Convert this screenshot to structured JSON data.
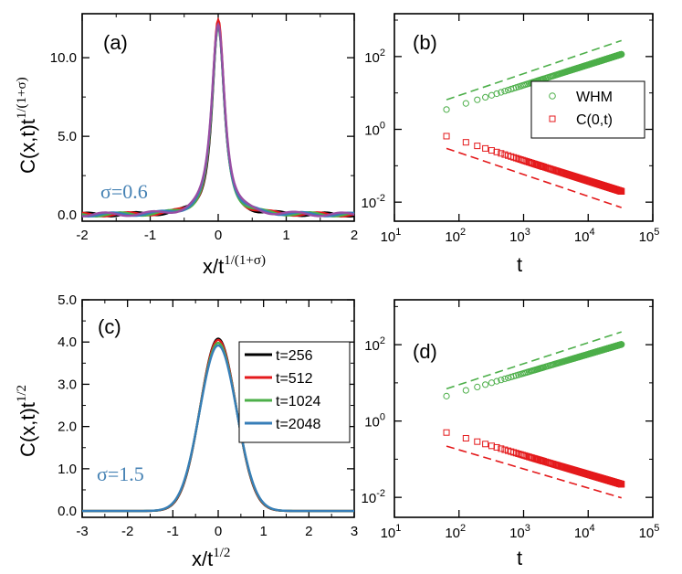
{
  "chart_data": [
    {
      "id": "a",
      "type": "line",
      "panel_label": "(a)",
      "xlabel": "x/t",
      "xlabel_sup": "1/(1+σ)",
      "ylabel": "C(x,t)t",
      "ylabel_sup": "1/(1+σ)",
      "xlim": [
        -2,
        2
      ],
      "ylim": [
        -0.4,
        12.8
      ],
      "xticks": [
        -2,
        -1,
        0,
        1,
        2
      ],
      "xtick_labels": [
        "-2",
        "-1",
        "0",
        "1",
        "2"
      ],
      "yticks": [
        0,
        5,
        10
      ],
      "ytick_labels": [
        "0.0",
        "5.0",
        "10.0"
      ],
      "annotation": "σ=0.6",
      "profile": {
        "form": "peaked",
        "peak": 12.2,
        "width": 0.11
      },
      "series": [
        {
          "color": "#000000",
          "peak": 12.1
        },
        {
          "color": "#e41a1c",
          "peak": 12.3
        },
        {
          "color": "#4daf4a",
          "peak": 11.8
        },
        {
          "color": "#377eb8",
          "peak": 12.0
        },
        {
          "color": "#984ea3",
          "peak": 12.2
        }
      ]
    },
    {
      "id": "b",
      "type": "scatter",
      "panel_label": "(b)",
      "xlabel": "t",
      "ylabel": "",
      "xscale": "log",
      "yscale": "log",
      "xlim": [
        10,
        100000
      ],
      "ylim": [
        0.003,
        1500
      ],
      "xtick_base": [
        "10",
        "10",
        "10",
        "10",
        "10"
      ],
      "xtick_exp": [
        "1",
        "2",
        "3",
        "4",
        "5"
      ],
      "ytick_base": [
        "10",
        "10",
        "10"
      ],
      "ytick_exp": [
        "-2",
        "0",
        "2"
      ],
      "legend_position": "right",
      "series": [
        {
          "name": "WHM",
          "marker": "circle",
          "color": "#4daf4a",
          "t_start": 64,
          "t_end": 32768,
          "y_start": 3.5,
          "slope": 0.56,
          "guide": {
            "y_start": 6.5,
            "slope": 0.6
          }
        },
        {
          "name": "C(0,t)",
          "marker": "square",
          "color": "#e41a1c",
          "t_start": 64,
          "t_end": 32768,
          "y_start": 0.65,
          "slope": -0.56,
          "guide": {
            "y_start": 0.3,
            "slope": -0.6
          }
        }
      ]
    },
    {
      "id": "c",
      "type": "line",
      "panel_label": "(c)",
      "xlabel": "x/t",
      "xlabel_sup": "1/2",
      "ylabel": "C(x,t)t",
      "ylabel_sup": "1/2",
      "xlim": [
        -3,
        3
      ],
      "ylim": [
        -0.15,
        5
      ],
      "xticks": [
        -3,
        -2,
        -1,
        0,
        1,
        2,
        3
      ],
      "xtick_labels": [
        "-3",
        "-2",
        "-1",
        "0",
        "1",
        "2",
        "3"
      ],
      "yticks": [
        0,
        1,
        2,
        3,
        4,
        5
      ],
      "ytick_labels": [
        "0.0",
        "1.0",
        "2.0",
        "3.0",
        "4.0",
        "5.0"
      ],
      "annotation": "σ=1.5",
      "legend_position": "top-right",
      "profile": {
        "form": "gaussian",
        "peak": 4.0,
        "sigma": 0.4
      },
      "series": [
        {
          "name": "t=256",
          "color": "#000000",
          "peak": 4.08,
          "sigma": 0.395
        },
        {
          "name": "t=512",
          "color": "#e41a1c",
          "peak": 4.05,
          "sigma": 0.398
        },
        {
          "name": "t=1024",
          "color": "#4daf4a",
          "peak": 3.98,
          "sigma": 0.403
        },
        {
          "name": "t=2048",
          "color": "#377eb8",
          "peak": 3.92,
          "sigma": 0.407
        }
      ]
    },
    {
      "id": "d",
      "type": "scatter",
      "panel_label": "(d)",
      "xlabel": "t",
      "ylabel": "",
      "xscale": "log",
      "yscale": "log",
      "xlim": [
        10,
        100000
      ],
      "ylim": [
        0.003,
        1500
      ],
      "xtick_base": [
        "10",
        "10",
        "10",
        "10",
        "10"
      ],
      "xtick_exp": [
        "1",
        "2",
        "3",
        "4",
        "5"
      ],
      "ytick_base": [
        "10",
        "10",
        "10"
      ],
      "ytick_exp": [
        "-2",
        "0",
        "2"
      ],
      "series": [
        {
          "marker": "circle",
          "color": "#4daf4a",
          "t_start": 64,
          "t_end": 32768,
          "y_start": 4.5,
          "slope": 0.5,
          "guide": {
            "y_start": 7,
            "slope": 0.55
          }
        },
        {
          "marker": "square",
          "color": "#e41a1c",
          "t_start": 64,
          "t_end": 32768,
          "y_start": 0.5,
          "slope": -0.5,
          "guide": {
            "y_start": 0.22,
            "slope": -0.5
          }
        }
      ]
    }
  ]
}
